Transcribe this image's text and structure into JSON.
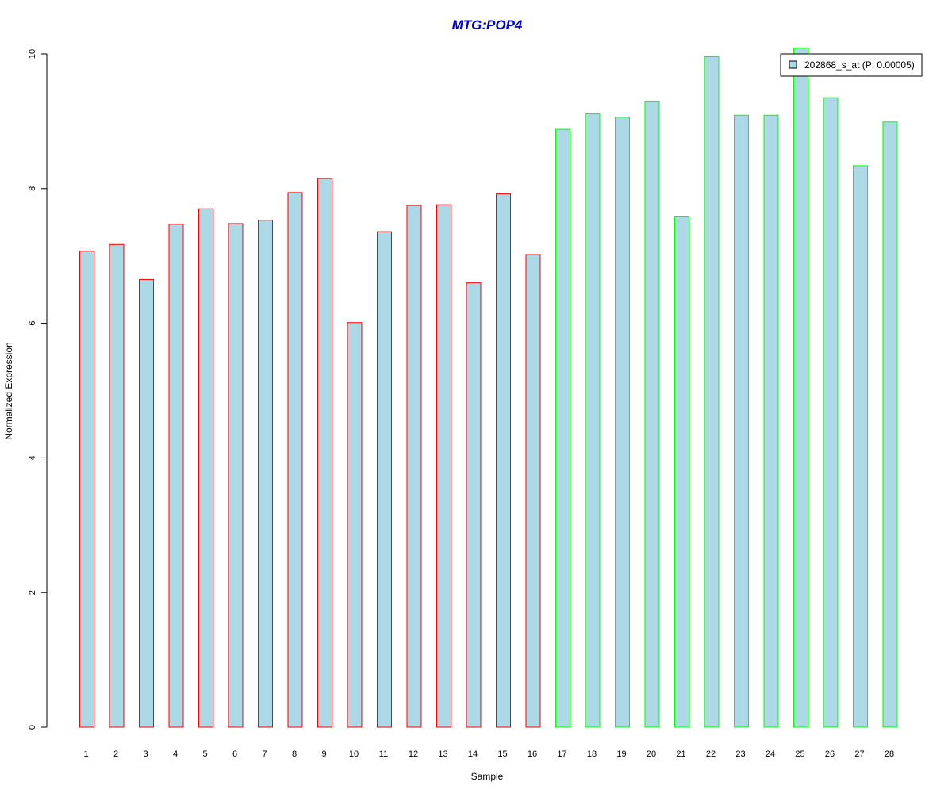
{
  "chart_data": {
    "type": "bar",
    "title": "MTG:POP4",
    "xlabel": "Sample",
    "ylabel": "Normalized Expression",
    "ylim": [
      0,
      10
    ],
    "yticks": [
      "0",
      "2",
      "4",
      "6",
      "8",
      "10"
    ],
    "categories": [
      "1",
      "2",
      "3",
      "4",
      "5",
      "6",
      "7",
      "8",
      "9",
      "10",
      "11",
      "12",
      "13",
      "14",
      "15",
      "16",
      "17",
      "18",
      "19",
      "20",
      "21",
      "22",
      "23",
      "24",
      "25",
      "26",
      "27",
      "28"
    ],
    "series": [
      {
        "name": "202868_s_at (P: 0.00005)",
        "values": [
          7.07,
          7.17,
          6.65,
          7.47,
          7.7,
          7.48,
          7.53,
          7.94,
          8.15,
          6.01,
          7.36,
          7.75,
          7.76,
          6.6,
          7.92,
          7.02,
          8.88,
          9.11,
          9.06,
          9.3,
          7.58,
          9.96,
          9.09,
          9.09,
          10.09,
          9.35,
          8.34,
          8.99
        ]
      }
    ],
    "groups": [
      {
        "samples": [
          1,
          16
        ],
        "border_color": "#ff0000"
      },
      {
        "samples": [
          17,
          28
        ],
        "border_color": "#00ff00"
      }
    ],
    "bar_fill": "#add8e6",
    "title_color": "#0000cc",
    "legend_position": "top-right",
    "grid": false
  }
}
